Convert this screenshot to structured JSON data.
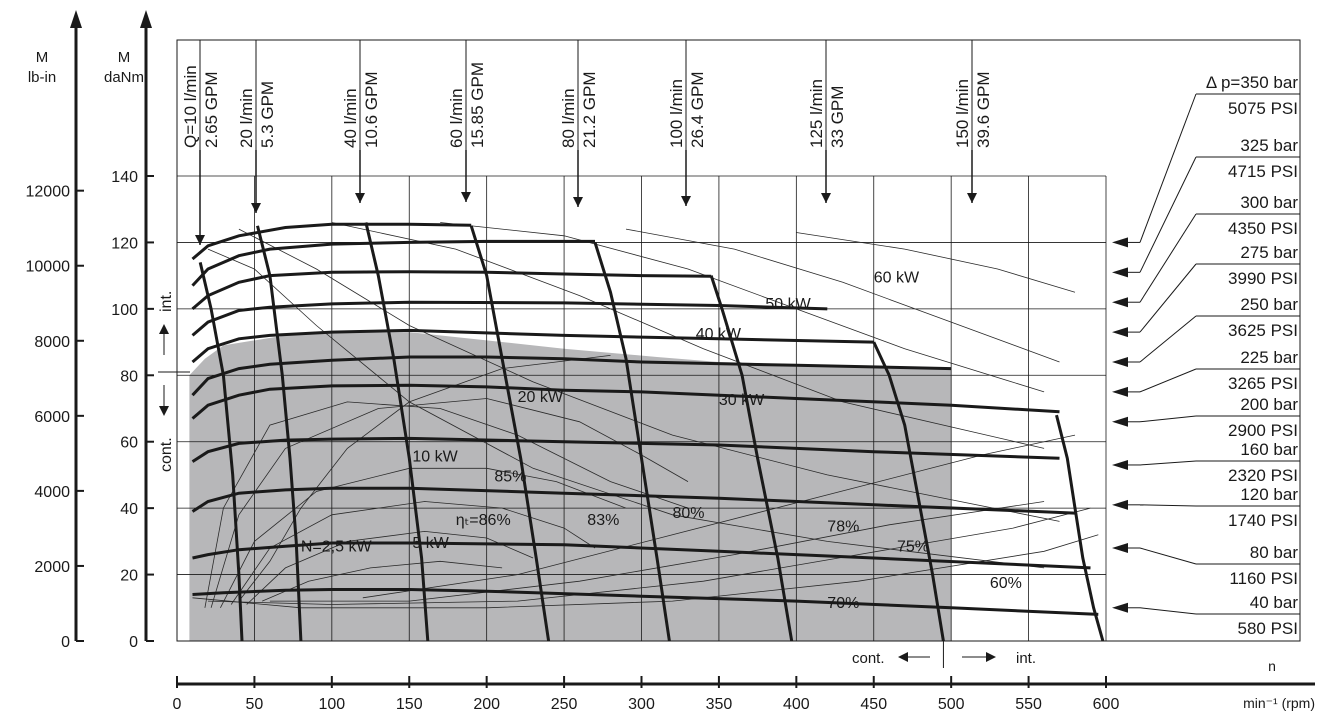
{
  "chart_data": {
    "type": "line",
    "title": "",
    "colors": {
      "continuous_region_fill": "#b7b7b9",
      "main_lines": "#1a1a1a"
    },
    "axes": {
      "torque_daNm": {
        "label_top": "M",
        "label_bottom": "daNm",
        "range": [
          0,
          140
        ],
        "ticks": [
          "0",
          "20",
          "40",
          "60",
          "80",
          "100",
          "120",
          "140"
        ]
      },
      "torque_lbin": {
        "label_top": "M",
        "label_bottom": "lb-in",
        "range": [
          0,
          12391
        ],
        "ticks": [
          "0",
          "2000",
          "4000",
          "6000",
          "8000",
          "10000",
          "12000"
        ]
      },
      "speed": {
        "label_top": "n",
        "label_bottom": "min⁻¹ (rpm)",
        "range": [
          0,
          600
        ],
        "ticks": [
          "0",
          "50",
          "100",
          "150",
          "200",
          "250",
          "300",
          "350",
          "400",
          "450",
          "500",
          "550",
          "600"
        ]
      }
    },
    "grid": true,
    "pressure_labels": [
      {
        "bar": "Δ p=350 bar",
        "psi": "5075 PSI",
        "torque": 120
      },
      {
        "bar": "325 bar",
        "psi": "4715 PSI",
        "torque": 111
      },
      {
        "bar": "300 bar",
        "psi": "4350 PSI",
        "torque": 102
      },
      {
        "bar": "275 bar",
        "psi": "3990 PSI",
        "torque": 93
      },
      {
        "bar": "250 bar",
        "psi": "3625 PSI",
        "torque": 84
      },
      {
        "bar": "225 bar",
        "psi": "3265 PSI",
        "torque": 75
      },
      {
        "bar": "200 bar",
        "psi": "2900 PSI",
        "torque": 66
      },
      {
        "bar": "160 bar",
        "psi": "2320 PSI",
        "torque": 53
      },
      {
        "bar": "120 bar",
        "psi": "1740 PSI",
        "torque": 41
      },
      {
        "bar": "80 bar",
        "psi": "1160 PSI",
        "torque": 28
      },
      {
        "bar": "40 bar",
        "psi": "580 PSI",
        "torque": 10
      }
    ],
    "series_pressure": [
      {
        "name": "350 bar",
        "points": [
          [
            10,
            115
          ],
          [
            20,
            119
          ],
          [
            40,
            122
          ],
          [
            70,
            124.5
          ],
          [
            100,
            125.5
          ],
          [
            150,
            125.5
          ],
          [
            190,
            125.2
          ]
        ]
      },
      {
        "name": "325 bar",
        "points": [
          [
            10,
            107
          ],
          [
            20,
            112
          ],
          [
            40,
            116
          ],
          [
            60,
            118
          ],
          [
            100,
            119.5
          ],
          [
            150,
            120
          ],
          [
            200,
            120.3
          ],
          [
            270,
            120.3
          ]
        ]
      },
      {
        "name": "300 bar",
        "points": [
          [
            10,
            100
          ],
          [
            20,
            104
          ],
          [
            40,
            108
          ],
          [
            60,
            110
          ],
          [
            100,
            111
          ],
          [
            150,
            111.2
          ],
          [
            200,
            111
          ],
          [
            250,
            110.5
          ],
          [
            300,
            110
          ],
          [
            345,
            109.8
          ]
        ]
      },
      {
        "name": "275 bar",
        "points": [
          [
            10,
            92
          ],
          [
            20,
            96
          ],
          [
            40,
            99.5
          ],
          [
            60,
            100.5
          ],
          [
            100,
            101.5
          ],
          [
            150,
            102
          ],
          [
            250,
            101.8
          ],
          [
            350,
            101
          ],
          [
            420,
            100
          ]
        ]
      },
      {
        "name": "250 bar",
        "points": [
          [
            10,
            84
          ],
          [
            20,
            88
          ],
          [
            40,
            91
          ],
          [
            60,
            92
          ],
          [
            100,
            93
          ],
          [
            150,
            93.5
          ],
          [
            250,
            92
          ],
          [
            350,
            91
          ],
          [
            450,
            90
          ]
        ]
      },
      {
        "name": "225 bar",
        "points": [
          [
            10,
            74
          ],
          [
            20,
            79
          ],
          [
            40,
            82
          ],
          [
            60,
            83.3
          ],
          [
            100,
            84.5
          ],
          [
            150,
            85.5
          ],
          [
            200,
            85.5
          ],
          [
            250,
            85
          ],
          [
            300,
            84
          ],
          [
            400,
            83
          ],
          [
            500,
            82
          ]
        ]
      },
      {
        "name": "200 bar",
        "points": [
          [
            10,
            67
          ],
          [
            20,
            71
          ],
          [
            40,
            74
          ],
          [
            60,
            75.8
          ],
          [
            100,
            76.8
          ],
          [
            150,
            77
          ],
          [
            200,
            76.5
          ],
          [
            250,
            75.5
          ],
          [
            300,
            75
          ],
          [
            400,
            73
          ],
          [
            500,
            71
          ],
          [
            570,
            69
          ]
        ]
      },
      {
        "name": "160 bar",
        "points": [
          [
            10,
            54
          ],
          [
            20,
            57
          ],
          [
            40,
            59.5
          ],
          [
            70,
            60.5
          ],
          [
            100,
            60.8
          ],
          [
            150,
            61
          ],
          [
            250,
            60
          ],
          [
            350,
            59
          ],
          [
            450,
            57
          ],
          [
            570,
            55
          ]
        ]
      },
      {
        "name": "120 bar",
        "points": [
          [
            10,
            39
          ],
          [
            20,
            42
          ],
          [
            40,
            44.5
          ],
          [
            70,
            45.5
          ],
          [
            100,
            46
          ],
          [
            150,
            46
          ],
          [
            250,
            44.5
          ],
          [
            350,
            43
          ],
          [
            450,
            41
          ],
          [
            580,
            38.5
          ]
        ]
      },
      {
        "name": "80 bar",
        "points": [
          [
            10,
            25
          ],
          [
            20,
            26
          ],
          [
            40,
            27.5
          ],
          [
            70,
            28.5
          ],
          [
            100,
            29.5
          ],
          [
            150,
            29.5
          ],
          [
            250,
            29
          ],
          [
            350,
            27
          ],
          [
            450,
            25
          ],
          [
            590,
            22
          ]
        ]
      },
      {
        "name": "40 bar",
        "points": [
          [
            10,
            14
          ],
          [
            30,
            14.5
          ],
          [
            70,
            15.3
          ],
          [
            100,
            15.5
          ],
          [
            150,
            15.5
          ],
          [
            200,
            15
          ],
          [
            300,
            13.5
          ],
          [
            400,
            12
          ],
          [
            500,
            10
          ],
          [
            595,
            8
          ]
        ]
      }
    ],
    "series_flow": [
      {
        "name": "Q=10 l/min",
        "sub": "2.65 GPM",
        "points": [
          [
            15,
            114
          ],
          [
            22,
            100
          ],
          [
            30,
            80
          ],
          [
            36,
            50
          ],
          [
            40,
            20
          ],
          [
            42,
            0
          ]
        ]
      },
      {
        "name": "20 l/min",
        "sub": "5.3 GPM",
        "points": [
          [
            52,
            125
          ],
          [
            60,
            110
          ],
          [
            68,
            80
          ],
          [
            73,
            55
          ],
          [
            77,
            30
          ],
          [
            80,
            0
          ]
        ]
      },
      {
        "name": "40 l/min",
        "sub": "10.6 GPM",
        "points": [
          [
            122,
            126
          ],
          [
            130,
            110
          ],
          [
            140,
            85
          ],
          [
            150,
            55
          ],
          [
            158,
            25
          ],
          [
            162,
            0
          ]
        ]
      },
      {
        "name": "60 l/min",
        "sub": "15.85 GPM",
        "points": [
          [
            190,
            125
          ],
          [
            200,
            110
          ],
          [
            212,
            80
          ],
          [
            222,
            55
          ],
          [
            232,
            25
          ],
          [
            240,
            0
          ]
        ]
      },
      {
        "name": "80 l/min",
        "sub": "21.2 GPM",
        "points": [
          [
            270,
            120
          ],
          [
            280,
            105
          ],
          [
            290,
            85
          ],
          [
            300,
            55
          ],
          [
            310,
            25
          ],
          [
            318,
            0
          ]
        ]
      },
      {
        "name": "100 l/min",
        "sub": "26.4 GPM",
        "points": [
          [
            345,
            110
          ],
          [
            352,
            100
          ],
          [
            365,
            80
          ],
          [
            375,
            55
          ],
          [
            388,
            25
          ],
          [
            397,
            0
          ]
        ]
      },
      {
        "name": "125 l/min",
        "sub": "33 GPM",
        "points": [
          [
            450,
            90
          ],
          [
            460,
            80
          ],
          [
            470,
            65
          ],
          [
            478,
            45
          ],
          [
            488,
            20
          ],
          [
            495,
            0
          ]
        ]
      },
      {
        "name": "150 l/min",
        "sub": "39.6 GPM",
        "points": [
          [
            568,
            68
          ],
          [
            575,
            55
          ],
          [
            580,
            40
          ],
          [
            585,
            25
          ],
          [
            592,
            10
          ],
          [
            598,
            0
          ]
        ]
      }
    ],
    "continuous_region": {
      "points": [
        [
          8,
          0
        ],
        [
          8,
          80
        ],
        [
          18,
          85
        ],
        [
          30,
          89
        ],
        [
          70,
          92
        ],
        [
          100,
          93
        ],
        [
          150,
          93
        ],
        [
          200,
          90.5
        ],
        [
          250,
          88
        ],
        [
          310,
          85.5
        ],
        [
          350,
          84
        ],
        [
          500,
          82
        ],
        [
          500,
          0
        ]
      ]
    },
    "power_labels": [
      {
        "text": "60 kW",
        "x": 450,
        "y": 108
      },
      {
        "text": "50 kW",
        "x": 380,
        "y": 100
      },
      {
        "text": "40 kW",
        "x": 335,
        "y": 91
      },
      {
        "text": "30 kW",
        "x": 350,
        "y": 71
      },
      {
        "text": "20 kW",
        "x": 220,
        "y": 72
      },
      {
        "text": "10 kW",
        "x": 152,
        "y": 54
      },
      {
        "text": "5 kW",
        "x": 152,
        "y": 28
      },
      {
        "text": "N=2,5 kW",
        "x": 80,
        "y": 27
      }
    ],
    "efficiency_labels": [
      {
        "text": "85%",
        "x": 205,
        "y": 48
      },
      {
        "text": "ηₜ=86%",
        "x": 180,
        "y": 35
      },
      {
        "text": "83%",
        "x": 265,
        "y": 35
      },
      {
        "text": "80%",
        "x": 320,
        "y": 37
      },
      {
        "text": "78%",
        "x": 420,
        "y": 33
      },
      {
        "text": "75%",
        "x": 465,
        "y": 27
      },
      {
        "text": "70%",
        "x": 420,
        "y": 10
      },
      {
        "text": "60%",
        "x": 525,
        "y": 16
      }
    ],
    "annotations": {
      "int_label": "int.",
      "cont_label": "cont.",
      "bottom_cont": "cont.",
      "bottom_int": "int."
    }
  }
}
